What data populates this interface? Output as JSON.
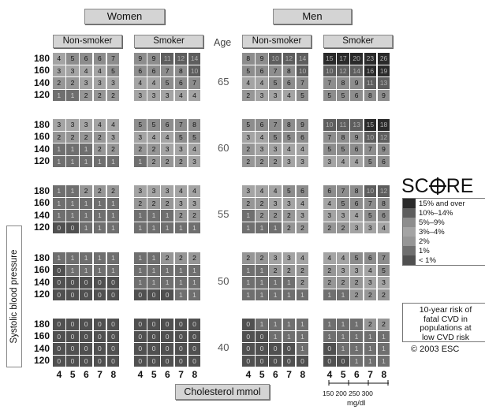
{
  "chart_data": {
    "type": "heatmap",
    "groups": [
      {
        "label": "Women",
        "subgroups": [
          "Non-smoker",
          "Smoker"
        ]
      },
      {
        "label": "Men",
        "subgroups": [
          "Non-smoker",
          "Smoker"
        ]
      }
    ],
    "age_header": "Age",
    "ages": [
      "65",
      "60",
      "55",
      "50",
      "40"
    ],
    "sbp_ticks": [
      "180",
      "160",
      "140",
      "120"
    ],
    "cholesterol_ticks": [
      "4",
      "5",
      "6",
      "7",
      "8"
    ],
    "mgdl_ticks": "150 200 250 300",
    "mgdl_unit": "mg/dl",
    "xlabel": "Cholesterol mmol",
    "ylabel": "Systolic blood pressure",
    "panels": [
      [
        [
          [
            4,
            5,
            6,
            6,
            7
          ],
          [
            3,
            3,
            4,
            4,
            5
          ],
          [
            2,
            2,
            3,
            3,
            3
          ],
          [
            1,
            1,
            2,
            2,
            2
          ]
        ],
        [
          [
            9,
            9,
            11,
            12,
            14
          ],
          [
            6,
            6,
            7,
            8,
            10
          ],
          [
            4,
            4,
            5,
            6,
            7
          ],
          [
            3,
            3,
            3,
            4,
            4
          ]
        ],
        [
          [
            8,
            9,
            10,
            12,
            14
          ],
          [
            5,
            6,
            7,
            8,
            10
          ],
          [
            4,
            4,
            5,
            6,
            7
          ],
          [
            2,
            3,
            3,
            4,
            5
          ]
        ],
        [
          [
            15,
            17,
            20,
            23,
            26
          ],
          [
            10,
            12,
            14,
            16,
            19
          ],
          [
            7,
            8,
            9,
            11,
            13
          ],
          [
            5,
            5,
            6,
            8,
            9
          ]
        ]
      ],
      [
        [
          [
            3,
            3,
            3,
            4,
            4
          ],
          [
            2,
            2,
            2,
            2,
            3
          ],
          [
            1,
            1,
            1,
            2,
            2
          ],
          [
            1,
            1,
            1,
            1,
            1
          ]
        ],
        [
          [
            5,
            5,
            6,
            7,
            8
          ],
          [
            3,
            4,
            4,
            5,
            5
          ],
          [
            2,
            2,
            3,
            3,
            4
          ],
          [
            1,
            2,
            2,
            2,
            3
          ]
        ],
        [
          [
            5,
            6,
            7,
            8,
            9
          ],
          [
            3,
            4,
            5,
            5,
            6
          ],
          [
            2,
            3,
            3,
            4,
            4
          ],
          [
            2,
            2,
            2,
            3,
            3
          ]
        ],
        [
          [
            10,
            11,
            13,
            15,
            18
          ],
          [
            7,
            8,
            9,
            10,
            12
          ],
          [
            5,
            5,
            6,
            7,
            9
          ],
          [
            3,
            4,
            4,
            5,
            6
          ]
        ]
      ],
      [
        [
          [
            1,
            1,
            2,
            2,
            2
          ],
          [
            1,
            1,
            1,
            1,
            1
          ],
          [
            1,
            1,
            1,
            1,
            1
          ],
          [
            0,
            0,
            1,
            1,
            1
          ]
        ],
        [
          [
            3,
            3,
            3,
            4,
            4
          ],
          [
            2,
            2,
            2,
            3,
            3
          ],
          [
            1,
            1,
            1,
            2,
            2
          ],
          [
            1,
            1,
            1,
            1,
            1
          ]
        ],
        [
          [
            3,
            4,
            4,
            5,
            6
          ],
          [
            2,
            2,
            3,
            3,
            4
          ],
          [
            1,
            2,
            2,
            2,
            3
          ],
          [
            1,
            1,
            1,
            2,
            2
          ]
        ],
        [
          [
            6,
            7,
            8,
            10,
            12
          ],
          [
            4,
            5,
            6,
            7,
            8
          ],
          [
            3,
            3,
            4,
            5,
            6
          ],
          [
            2,
            2,
            3,
            3,
            4
          ]
        ]
      ],
      [
        [
          [
            1,
            1,
            1,
            1,
            1
          ],
          [
            0,
            1,
            1,
            1,
            1
          ],
          [
            0,
            0,
            0,
            0,
            0
          ],
          [
            0,
            0,
            0,
            0,
            0
          ]
        ],
        [
          [
            1,
            1,
            2,
            2,
            2
          ],
          [
            1,
            1,
            1,
            1,
            1
          ],
          [
            1,
            1,
            1,
            1,
            1
          ],
          [
            0,
            0,
            0,
            1,
            1
          ]
        ],
        [
          [
            2,
            2,
            3,
            3,
            4
          ],
          [
            1,
            1,
            2,
            2,
            2
          ],
          [
            1,
            1,
            1,
            1,
            2
          ],
          [
            1,
            1,
            1,
            1,
            1
          ]
        ],
        [
          [
            4,
            4,
            5,
            6,
            7
          ],
          [
            2,
            3,
            3,
            4,
            5
          ],
          [
            2,
            2,
            2,
            3,
            3
          ],
          [
            1,
            1,
            2,
            2,
            2
          ]
        ]
      ],
      [
        [
          [
            0,
            0,
            0,
            0,
            0
          ],
          [
            0,
            0,
            0,
            0,
            0
          ],
          [
            0,
            0,
            0,
            0,
            0
          ],
          [
            0,
            0,
            0,
            0,
            0
          ]
        ],
        [
          [
            0,
            0,
            0,
            0,
            0
          ],
          [
            0,
            0,
            0,
            0,
            0
          ],
          [
            0,
            0,
            0,
            0,
            0
          ],
          [
            0,
            0,
            0,
            0,
            0
          ]
        ],
        [
          [
            0,
            1,
            1,
            1,
            1
          ],
          [
            0,
            0,
            1,
            1,
            1
          ],
          [
            0,
            0,
            0,
            0,
            1
          ],
          [
            0,
            0,
            0,
            0,
            0
          ]
        ],
        [
          [
            1,
            1,
            1,
            2,
            2
          ],
          [
            1,
            1,
            1,
            1,
            1
          ],
          [
            0,
            1,
            1,
            1,
            1
          ],
          [
            0,
            0,
            1,
            1,
            1
          ]
        ]
      ]
    ],
    "legend": [
      {
        "label": "15% and over",
        "min": 15,
        "color": "#2a2a2a"
      },
      {
        "label": "10%–14%",
        "min": 10,
        "color": "#5e5e5e"
      },
      {
        "label": "5%–9%",
        "min": 5,
        "color": "#8d8d8d"
      },
      {
        "label": "3%–4%",
        "min": 3,
        "color": "#a4a4a4"
      },
      {
        "label": "2%",
        "min": 2,
        "color": "#969696"
      },
      {
        "label": "1%",
        "min": 1,
        "color": "#6f6f6f"
      },
      {
        "label": "< 1%",
        "min": 0,
        "color": "#505050"
      }
    ],
    "brand": "SCORE",
    "note_lines": [
      "10-year risk of",
      "fatal CVD in",
      "populations at",
      "low CVD risk"
    ],
    "copyright": "© 2003 ESC"
  }
}
